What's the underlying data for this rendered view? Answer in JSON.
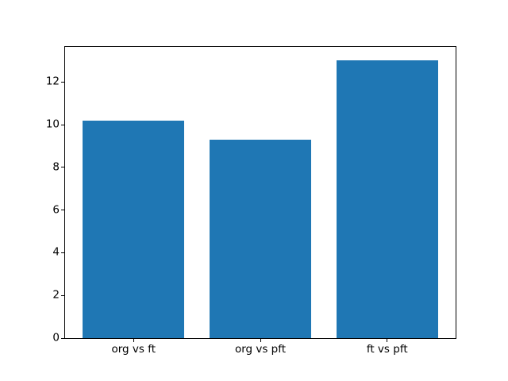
{
  "chart_data": {
    "type": "bar",
    "title": "",
    "xlabel": "",
    "ylabel": "",
    "categories": [
      "org vs ft",
      "org vs pft",
      "ft vs pft"
    ],
    "values": [
      10.2,
      9.3,
      13.0
    ],
    "ytick_labels": [
      "0",
      "2",
      "4",
      "6",
      "8",
      "10",
      "12"
    ],
    "ytick_values": [
      0,
      2,
      4,
      6,
      8,
      10,
      12
    ],
    "ylim": [
      0,
      13.65
    ],
    "xlim": [
      -0.54,
      2.54
    ],
    "bar_width_fraction": 0.8,
    "bar_color": "#1f77b4",
    "spine_color": "#000000",
    "tick_label_color": "#000000",
    "background_color": "#ffffff",
    "grid": false,
    "legend_position": "none"
  }
}
